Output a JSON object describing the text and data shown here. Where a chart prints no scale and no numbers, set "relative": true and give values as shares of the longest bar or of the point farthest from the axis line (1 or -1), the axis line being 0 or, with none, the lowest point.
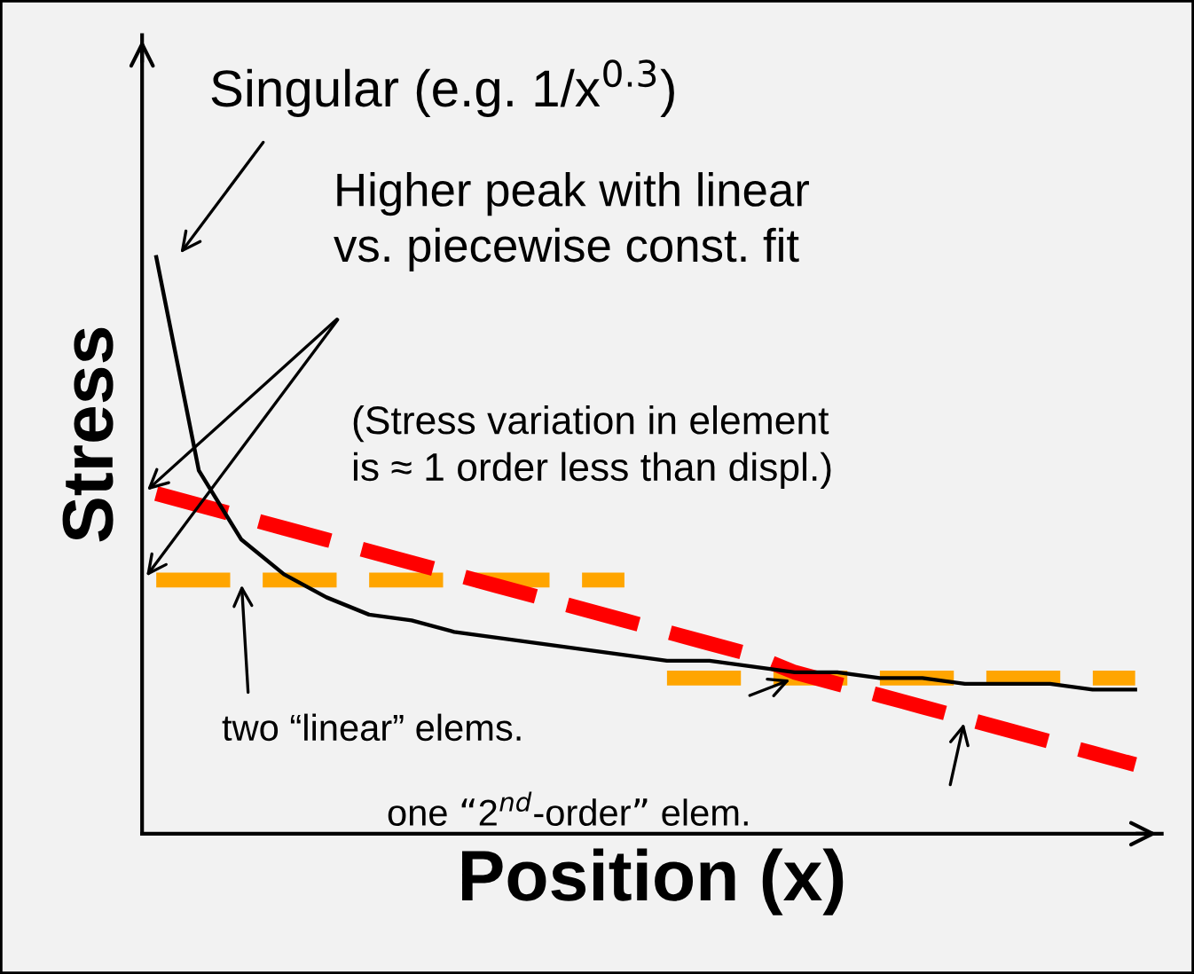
{
  "chart_data": {
    "type": "line",
    "relative": true,
    "xlabel": "Position (x)",
    "ylabel": "Stress",
    "categories": [
      null,
      null,
      null,
      null,
      null,
      null,
      null,
      null,
      null,
      null,
      null,
      null,
      null,
      null,
      null,
      null,
      null,
      null,
      null,
      null,
      null,
      null,
      null,
      null
    ],
    "series": [
      {
        "color": "#000000",
        "line_style": "solid",
        "values": [
          1.0,
          0.63,
          0.51,
          0.45,
          0.41,
          0.38,
          0.37,
          0.35,
          0.34,
          0.33,
          0.32,
          0.31,
          0.3,
          0.3,
          0.29,
          0.28,
          0.28,
          0.27,
          0.27,
          0.26,
          0.26,
          0.26,
          0.25,
          0.25
        ]
      },
      {
        "color": "#ffa500",
        "line_style": "dashed",
        "values": [
          0.44,
          0.44,
          0.44,
          0.44,
          0.44,
          0.44,
          0.44,
          0.44,
          0.44,
          0.44,
          0.44,
          0.44,
          null,
          null,
          null,
          null,
          null,
          null,
          null,
          null,
          null,
          null,
          null,
          null
        ]
      },
      {
        "color": "#ffa500",
        "line_style": "dashed",
        "values": [
          null,
          null,
          null,
          null,
          null,
          null,
          null,
          null,
          null,
          null,
          null,
          null,
          0.27,
          0.27,
          0.27,
          0.27,
          0.27,
          0.27,
          0.27,
          0.27,
          0.27,
          0.27,
          0.27,
          0.27
        ]
      },
      {
        "color": "#ff0000",
        "line_style": "dashed",
        "values": [
          0.59,
          0.57,
          0.55,
          0.53,
          0.51,
          0.49,
          0.47,
          0.45,
          0.43,
          0.41,
          0.39,
          0.37,
          0.35,
          0.33,
          0.31,
          0.28,
          0.26,
          0.24,
          0.22,
          0.2,
          0.18,
          0.16,
          0.14,
          0.12
        ]
      }
    ],
    "annotations": [
      "Singular (e.g. 1/x$^{0.3}$)",
      "Higher peak with linear\nvs. piecewise const. fit",
      "(Stress variation in element\nis ≈ 1 order less than displ.)",
      "two “linear” elems.",
      "one “2$^{nd}$-order” elem."
    ],
    "legend": false
  }
}
